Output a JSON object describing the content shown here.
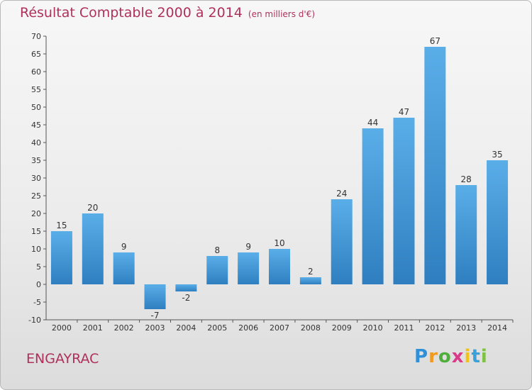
{
  "title": "Résultat Comptable 2000 à 2014",
  "subtitle": "(en milliers d'€)",
  "commune": "ENGAYRAC",
  "logo": {
    "text": "Proxiti",
    "letters": [
      "P",
      "r",
      "o",
      "x",
      "i",
      "t",
      "i"
    ],
    "colors": [
      "#2f8fd8",
      "#f29a1c",
      "#4fae3c",
      "#d93a8a",
      "#f2c21c",
      "#3aa0d8",
      "#7dc242"
    ]
  },
  "colors": {
    "bar_top": "#5aaee8",
    "bar_bottom": "#2f7fc0",
    "title": "#b0305c"
  },
  "chart_data": {
    "type": "bar",
    "title": "Résultat Comptable 2000 à 2014",
    "ylabel": "en milliers d'€",
    "xlabel": "",
    "categories": [
      "2000",
      "2001",
      "2002",
      "2003",
      "2004",
      "2005",
      "2006",
      "2007",
      "2008",
      "2009",
      "2010",
      "2011",
      "2012",
      "2013",
      "2014"
    ],
    "values": [
      15,
      20,
      9,
      -7,
      -2,
      8,
      9,
      10,
      2,
      24,
      44,
      47,
      67,
      28,
      35
    ],
    "ylim": [
      -10,
      70
    ],
    "yticks": [
      -10,
      -5,
      0,
      5,
      10,
      15,
      20,
      25,
      30,
      35,
      40,
      45,
      50,
      55,
      60,
      65,
      70
    ],
    "grid": false
  }
}
